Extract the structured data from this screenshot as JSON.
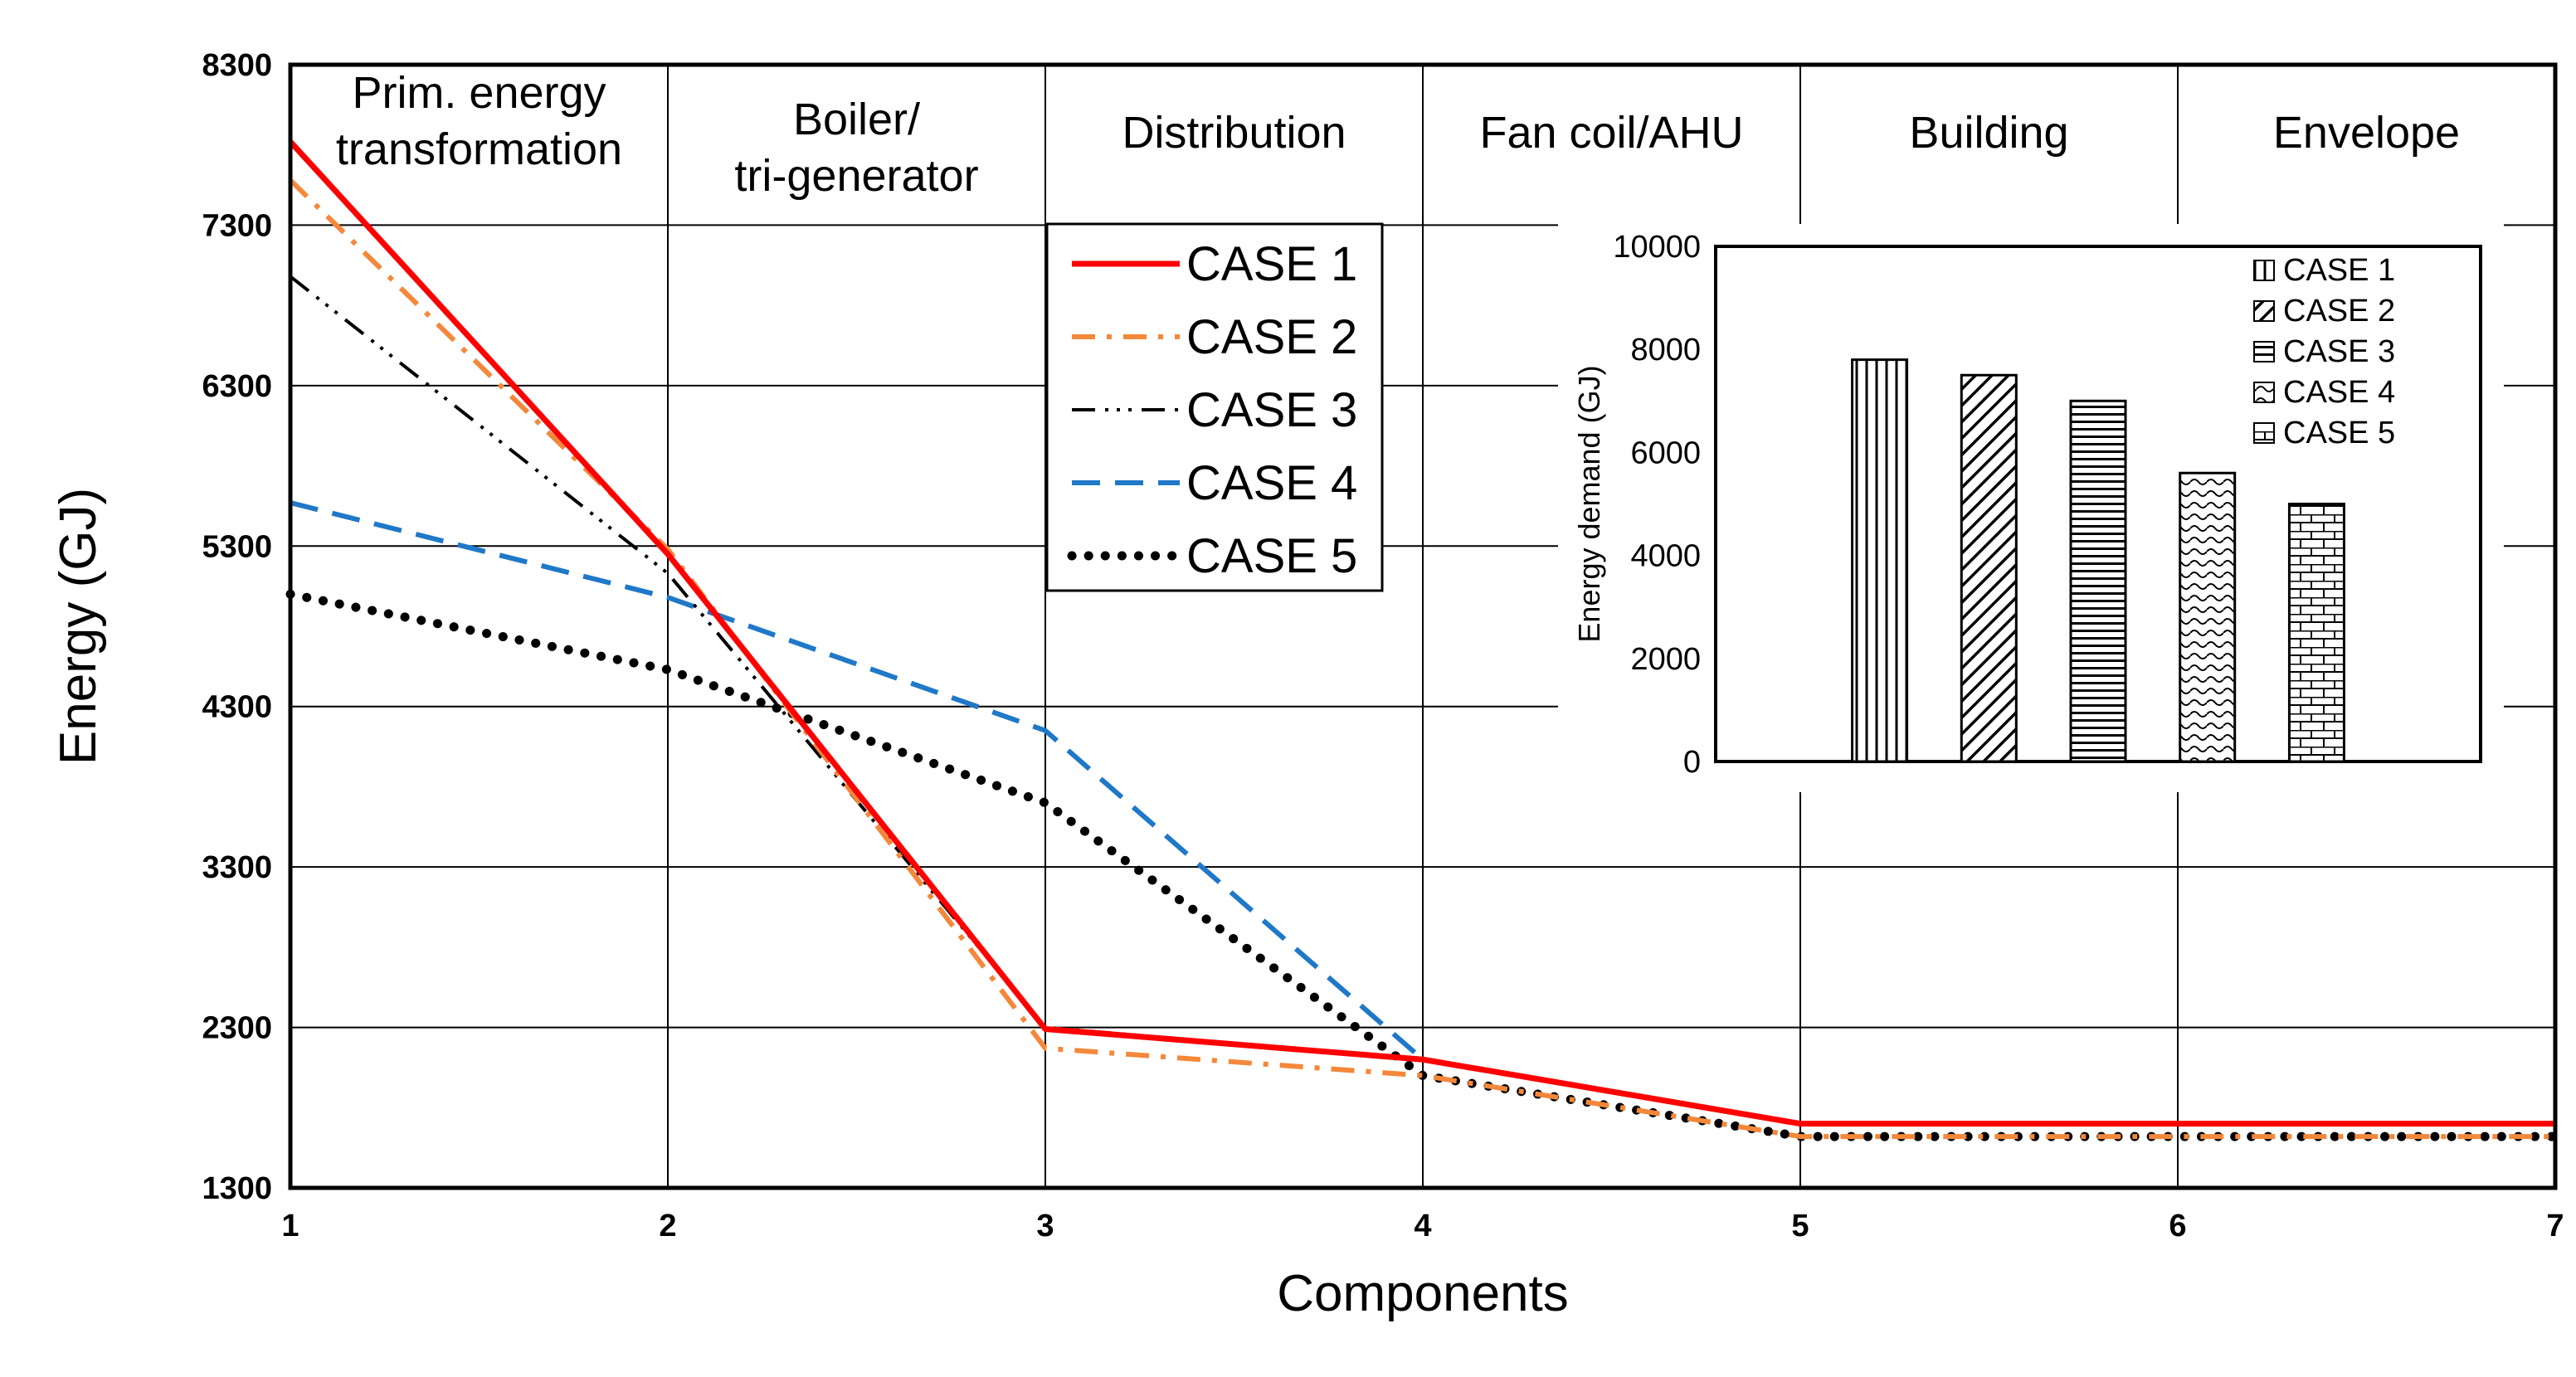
{
  "chart_data": [
    {
      "type": "line",
      "xlabel": "Components",
      "ylabel": "Energy  (GJ)",
      "xlim": [
        1,
        7
      ],
      "ylim": [
        1300,
        8300
      ],
      "x_ticks": [
        "1",
        "2",
        "3",
        "4",
        "5",
        "6",
        "7"
      ],
      "y_ticks": [
        "1300",
        "2300",
        "3300",
        "4300",
        "5300",
        "6300",
        "7300",
        "8300"
      ],
      "regions": [
        {
          "lines": [
            "Prim. energy",
            "transformation"
          ]
        },
        {
          "lines": [
            "Boiler/",
            "tri-generator"
          ]
        },
        {
          "lines": [
            "Distribution"
          ]
        },
        {
          "lines": [
            "Fan coil/AHU"
          ]
        },
        {
          "lines": [
            "Building"
          ]
        },
        {
          "lines": [
            "Envelope"
          ]
        }
      ],
      "x": [
        1,
        2,
        3,
        4,
        5,
        6,
        7
      ],
      "series": [
        {
          "name": "CASE 1",
          "color": "#ff0000",
          "values": [
            7820,
            5250,
            2290,
            2100,
            1700,
            1700,
            1700
          ]
        },
        {
          "name": "CASE 2",
          "color": "#f4883a",
          "values": [
            7580,
            5280,
            2170,
            2000,
            1620,
            1620,
            1620
          ]
        },
        {
          "name": "CASE 3",
          "color": "#000000",
          "values": [
            6980,
            5130,
            2300,
            2100,
            1700,
            1700,
            1700
          ]
        },
        {
          "name": "CASE 4",
          "color": "#1f78c8",
          "values": [
            5570,
            4980,
            4150,
            2100,
            1700,
            1700,
            1700
          ]
        },
        {
          "name": "CASE 5",
          "color": "#000000",
          "values": [
            5000,
            4530,
            3700,
            2000,
            1620,
            1620,
            1620
          ]
        }
      ]
    },
    {
      "type": "bar",
      "ylabel": "Energy demand (GJ)",
      "ylim": [
        0,
        10000
      ],
      "y_ticks": [
        "0",
        "2000",
        "4000",
        "6000",
        "8000",
        "10000"
      ],
      "categories": [
        "CASE 1",
        "CASE 2",
        "CASE 3",
        "CASE 4",
        "CASE 5"
      ],
      "values": [
        7800,
        7500,
        7000,
        5600,
        5000
      ]
    }
  ]
}
